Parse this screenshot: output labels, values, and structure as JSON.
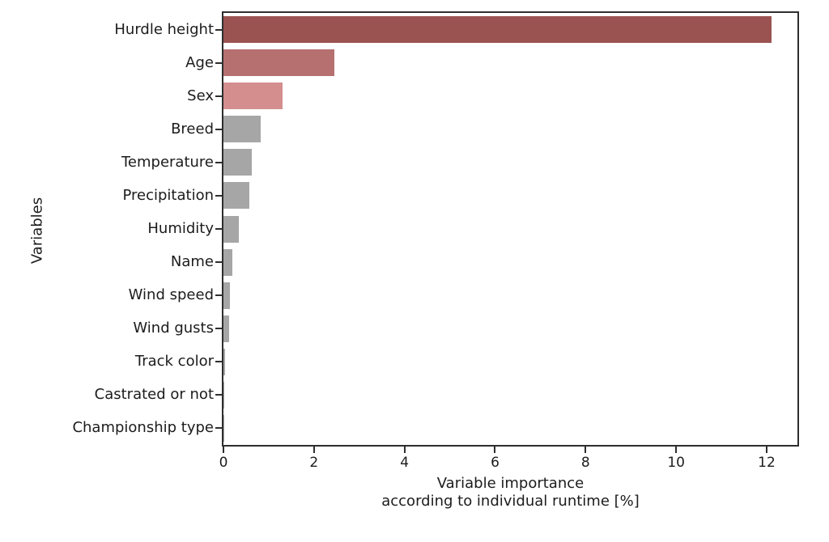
{
  "chart_data": {
    "type": "bar",
    "orientation": "horizontal",
    "title": "",
    "categories": [
      "Hurdle height",
      "Age",
      "Sex",
      "Breed",
      "Temperature",
      "Precipitation",
      "Humidity",
      "Name",
      "Wind speed",
      "Wind gusts",
      "Track color",
      "Castrated or not",
      "Championship type"
    ],
    "values": [
      12.1,
      2.45,
      1.3,
      0.82,
      0.62,
      0.58,
      0.34,
      0.2,
      0.15,
      0.13,
      0.04,
      0.01,
      0.005
    ],
    "bar_colors": [
      "#9b5351",
      "#b67070",
      "#d48e8e",
      "#a6a6a6",
      "#a6a6a6",
      "#a6a6a6",
      "#a6a6a6",
      "#a6a6a6",
      "#a6a6a6",
      "#a6a6a6",
      "#a6a6a6",
      "#a6a6a6",
      "#a6a6a6"
    ],
    "xlabel_line1": "Variable importance",
    "xlabel_line2": "according to individual runtime [%]",
    "ylabel": "Variables",
    "xlim": [
      0,
      12.68
    ],
    "xticks": [
      "0",
      "2",
      "4",
      "6",
      "8",
      "10",
      "12"
    ],
    "xtick_values": [
      0,
      2,
      4,
      6,
      8,
      10,
      12
    ],
    "grid": false,
    "legend": "none",
    "axis_color": "#2e2e2e",
    "text_color": "#1c1c1c",
    "background_color": "#ffffff",
    "bar_height_fraction": 0.8
  }
}
